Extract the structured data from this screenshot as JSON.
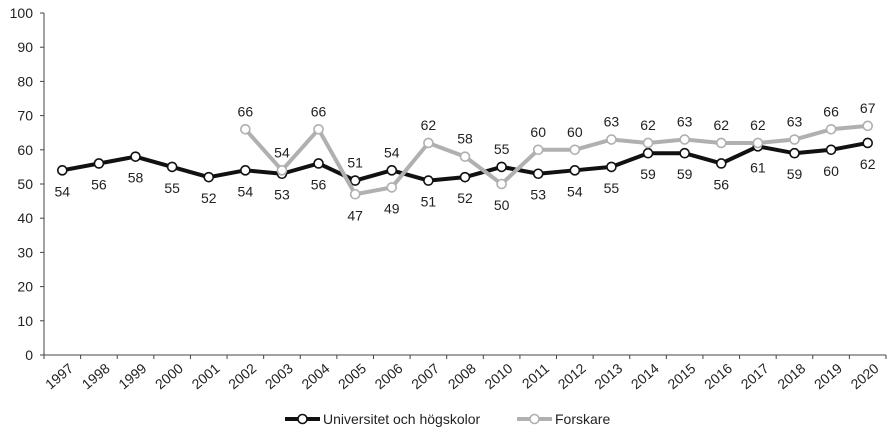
{
  "chart_data": {
    "type": "line",
    "categories": [
      "1997",
      "1998",
      "1999",
      "2000",
      "2001",
      "2002",
      "2003",
      "2004",
      "2005",
      "2006",
      "2007",
      "2008",
      "2010",
      "2011",
      "2012",
      "2013",
      "2014",
      "2015",
      "2016",
      "2017",
      "2018",
      "2019",
      "2020"
    ],
    "ylim": [
      0,
      100
    ],
    "yticks": [
      "0",
      "10",
      "20",
      "30",
      "40",
      "50",
      "60",
      "70",
      "80",
      "90",
      "100"
    ],
    "grid": false,
    "legend_position": "bottom-center",
    "series": [
      {
        "name": "Universitet och högskolor",
        "color": "#111111",
        "values": [
          54,
          56,
          58,
          55,
          52,
          54,
          53,
          56,
          51,
          54,
          51,
          52,
          55,
          53,
          54,
          55,
          59,
          59,
          56,
          61,
          59,
          60,
          62
        ],
        "label_side": [
          "below",
          "below",
          "below",
          "below",
          "below",
          "below",
          "below",
          "below",
          "above",
          "above",
          "below",
          "below",
          "above",
          "below",
          "below",
          "below",
          "below",
          "below",
          "below",
          "below",
          "below",
          "below",
          "below"
        ]
      },
      {
        "name": "Forskare",
        "color": "#b0b0b0",
        "values": [
          null,
          null,
          null,
          null,
          null,
          66,
          54,
          66,
          47,
          49,
          62,
          58,
          50,
          60,
          60,
          63,
          62,
          63,
          62,
          62,
          63,
          66,
          67
        ],
        "label_side": [
          null,
          null,
          null,
          null,
          null,
          "above",
          "above",
          "above",
          "below",
          "below",
          "above",
          "above",
          "below",
          "above",
          "above",
          "above",
          "above",
          "above",
          "above",
          "above",
          "above",
          "above",
          "above"
        ]
      }
    ]
  }
}
